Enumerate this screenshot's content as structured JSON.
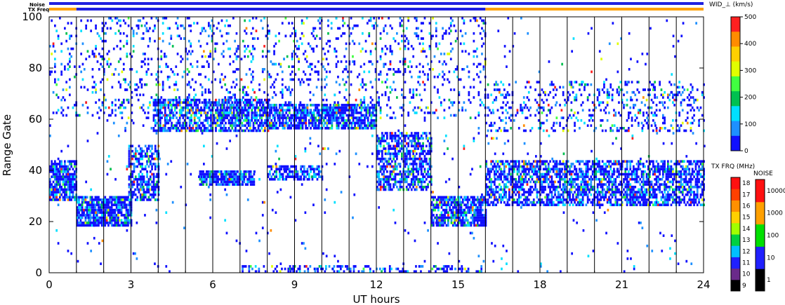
{
  "header": {
    "noise_label": "Noise",
    "txfreq_label": "TX Freq"
  },
  "chart_data": {
    "type": "heatmap",
    "title": "",
    "xlabel": "UT hours",
    "ylabel": "Range Gate",
    "xlim": [
      0,
      24
    ],
    "ylim": [
      0,
      100
    ],
    "x_ticks": [
      "0",
      "3",
      "6",
      "9",
      "12",
      "15",
      "18",
      "21",
      "24"
    ],
    "y_ticks": [
      "0",
      "20",
      "40",
      "60",
      "80",
      "100"
    ],
    "grid": false,
    "vertical_scan_boundaries_hours": [
      1,
      2,
      3,
      4,
      5,
      6,
      7,
      8,
      9,
      10,
      11,
      12,
      13,
      14,
      15,
      16,
      17,
      18,
      19,
      20,
      21,
      22,
      23
    ],
    "colorbar_width": {
      "label": "WID_⊥ (km/s)",
      "min": 0,
      "max": 500,
      "ticks": [
        "0",
        "100",
        "200",
        "300",
        "400",
        "500"
      ],
      "colors": [
        "#1010ff",
        "#1e90ff",
        "#00e0ff",
        "#00c050",
        "#40ff40",
        "#e0ff00",
        "#ffd000",
        "#ff8c00",
        "#ff2020"
      ]
    },
    "colorbar_txfreq": {
      "label": "TX FRQ (MHz)",
      "ticks": [
        "9",
        "10",
        "11",
        "12",
        "13",
        "14",
        "15",
        "16",
        "17",
        "18"
      ],
      "colors": [
        "#000000",
        "#6a2a8a",
        "#2020ff",
        "#00c0ff",
        "#00d040",
        "#a0ff00",
        "#ffd000",
        "#ff9000",
        "#ff4000",
        "#ff1010"
      ]
    },
    "colorbar_noise": {
      "label": "NOISE",
      "ticks": [
        "1",
        "10",
        "100",
        "1000",
        "10000"
      ],
      "colors": [
        "#000000",
        "#2020ff",
        "#00e000",
        "#ffa000",
        "#ff1010"
      ]
    },
    "top_bars": {
      "noise": {
        "color": "#2020e0",
        "from_hours": 0,
        "to_hours": 24
      },
      "tx_freq": [
        {
          "from_hours": 0,
          "to_hours": 1,
          "color": "#ffa000"
        },
        {
          "from_hours": 1,
          "to_hours": 16,
          "color": "#2020e0"
        },
        {
          "from_hours": 16,
          "to_hours": 24,
          "color": "#ffa000"
        }
      ]
    },
    "echo_bands": [
      {
        "t0": 0.0,
        "t1": 1.0,
        "g0": 28,
        "g1": 44,
        "density": 0.8
      },
      {
        "t0": 1.0,
        "t1": 3.0,
        "g0": 18,
        "g1": 30,
        "density": 0.85
      },
      {
        "t0": 2.9,
        "t1": 4.0,
        "g0": 28,
        "g1": 50,
        "density": 0.6
      },
      {
        "t0": 3.8,
        "t1": 8.0,
        "g0": 55,
        "g1": 68,
        "density": 0.7
      },
      {
        "t0": 8.0,
        "t1": 12.0,
        "g0": 56,
        "g1": 66,
        "density": 0.75
      },
      {
        "t0": 12.0,
        "t1": 14.0,
        "g0": 32,
        "g1": 55,
        "density": 0.6
      },
      {
        "t0": 14.0,
        "t1": 16.0,
        "g0": 18,
        "g1": 30,
        "density": 0.75
      },
      {
        "t0": 5.5,
        "t1": 7.5,
        "g0": 34,
        "g1": 40,
        "density": 0.85
      },
      {
        "t0": 8.0,
        "t1": 10.0,
        "g0": 36,
        "g1": 42,
        "density": 0.6
      },
      {
        "t0": 16.0,
        "t1": 24.0,
        "g0": 26,
        "g1": 44,
        "density": 0.65
      },
      {
        "t0": 16.0,
        "t1": 24.0,
        "g0": 55,
        "g1": 75,
        "density": 0.18
      },
      {
        "t0": 0.0,
        "t1": 16.0,
        "g0": 60,
        "g1": 100,
        "density": 0.12
      },
      {
        "t0": 0.0,
        "t1": 24.0,
        "g0": 0,
        "g1": 100,
        "density": 0.015
      },
      {
        "t0": 7.0,
        "t1": 16.0,
        "g0": 0,
        "g1": 3,
        "density": 0.35
      }
    ]
  }
}
